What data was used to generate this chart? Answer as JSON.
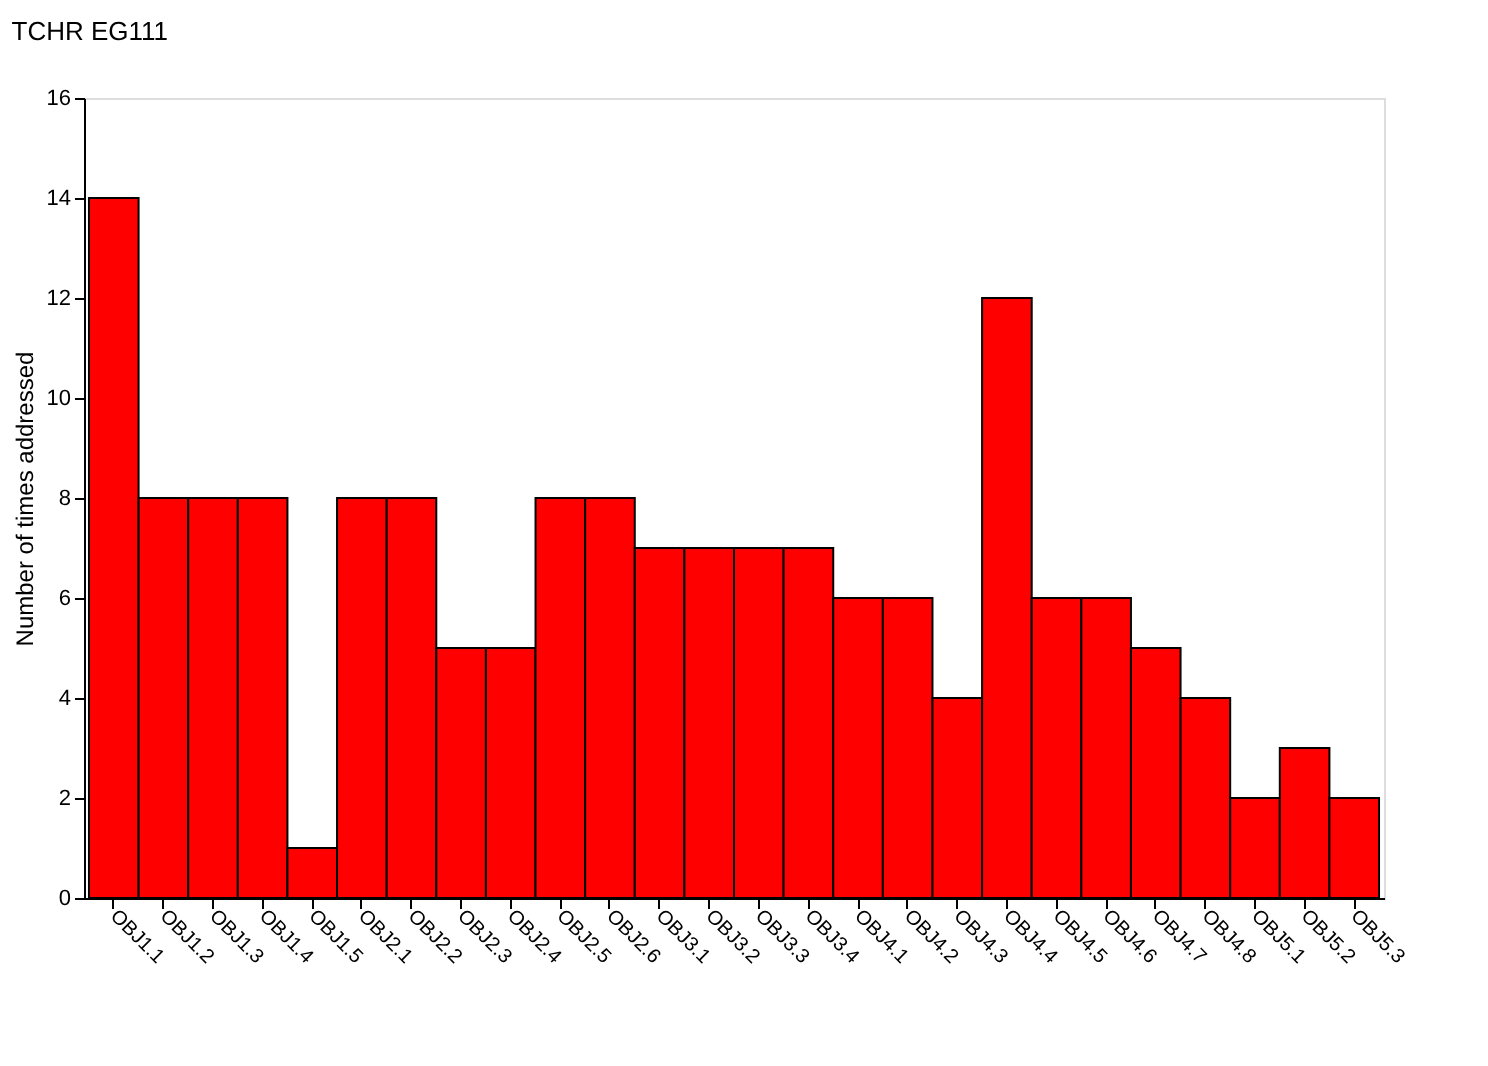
{
  "chart_data": {
    "type": "bar",
    "title": "TCHR   EG111",
    "ylabel": "Number of times addressed",
    "categories": [
      "OBJ1.1",
      "OBJ1.2",
      "OBJ1.3",
      "OBJ1.4",
      "OBJ1.5",
      "OBJ2.1",
      "OBJ2.2",
      "OBJ2.3",
      "OBJ2.4",
      "OBJ2.5",
      "OBJ2.6",
      "OBJ3.1",
      "OBJ3.2",
      "OBJ3.3",
      "OBJ3.4",
      "OBJ4.1",
      "OBJ4.2",
      "OBJ4.3",
      "OBJ4.4",
      "OBJ4.5",
      "OBJ4.6",
      "OBJ4.7",
      "OBJ4.8",
      "OBJ5.1",
      "OBJ5.2",
      "OBJ5.3"
    ],
    "values": [
      14,
      8,
      8,
      8,
      1,
      8,
      8,
      5,
      5,
      8,
      8,
      7,
      7,
      7,
      7,
      6,
      6,
      4,
      12,
      6,
      6,
      5,
      4,
      2,
      3,
      2
    ],
    "color": "#ff0000",
    "ylim": [
      0,
      16
    ],
    "yticks": [
      0,
      2,
      4,
      6,
      8,
      10,
      12,
      14,
      16
    ],
    "grid": false
  }
}
